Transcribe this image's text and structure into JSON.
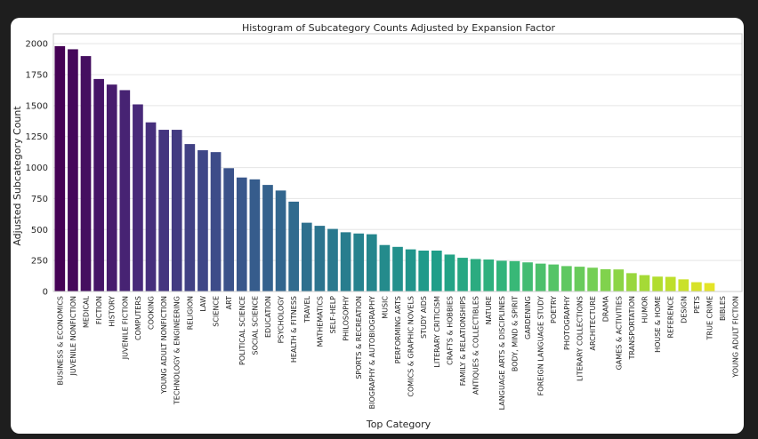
{
  "chart_data": {
    "type": "bar",
    "title": "Histogram of Subcategory Counts Adjusted by Expansion Factor",
    "xlabel": "Top Category",
    "ylabel": "Adjusted Subcategory Count",
    "ylim": [
      0,
      2080
    ],
    "yticks": [
      0,
      250,
      500,
      750,
      1000,
      1250,
      1500,
      1750,
      2000
    ],
    "grid": "horizontal",
    "palette": "viridis",
    "categories": [
      "BUSINESS & ECONOMICS",
      "JUVENILE NONFICTION",
      "MEDICAL",
      "FICTION",
      "HISTORY",
      "JUVENILE FICTION",
      "COMPUTERS",
      "COOKING",
      "YOUNG ADULT NONFICTION",
      "TECHNOLOGY & ENGINEERING",
      "RELIGION",
      "LAW",
      "SCIENCE",
      "ART",
      "POLITICAL SCIENCE",
      "SOCIAL SCIENCE",
      "EDUCATION",
      "PSYCHOLOGY",
      "HEALTH & FITNESS",
      "TRAVEL",
      "MATHEMATICS",
      "SELF-HELP",
      "PHILOSOPHY",
      "SPORTS & RECREATION",
      "BIOGRAPHY & AUTOBIOGRAPHY",
      "MUSIC",
      "PERFORMING ARTS",
      "COMICS & GRAPHIC NOVELS",
      "STUDY AIDS",
      "LITERARY CRITICISM",
      "CRAFTS & HOBBIES",
      "FAMILY & RELATIONSHIPS",
      "ANTIQUES & COLLECTIBLES",
      "NATURE",
      "LANGUAGE ARTS & DISCIPLINES",
      "BODY, MIND & SPIRIT",
      "GARDENING",
      "FOREIGN LANGUAGE STUDY",
      "POETRY",
      "PHOTOGRAPHY",
      "LITERARY COLLECTIONS",
      "ARCHITECTURE",
      "DRAMA",
      "GAMES & ACTIVITIES",
      "TRANSPORTATION",
      "HUMOR",
      "HOUSE & HOME",
      "REFERENCE",
      "DESIGN",
      "PETS",
      "TRUE CRIME",
      "BIBLES",
      "YOUNG ADULT FICTION"
    ],
    "values": [
      1980,
      1955,
      1900,
      1715,
      1670,
      1625,
      1510,
      1365,
      1305,
      1305,
      1190,
      1140,
      1125,
      995,
      920,
      905,
      860,
      815,
      725,
      555,
      530,
      505,
      478,
      468,
      462,
      375,
      360,
      340,
      330,
      330,
      298,
      272,
      262,
      258,
      248,
      245,
      235,
      225,
      218,
      205,
      200,
      192,
      180,
      178,
      148,
      132,
      120,
      118,
      98,
      75,
      68,
      3,
      2
    ]
  }
}
